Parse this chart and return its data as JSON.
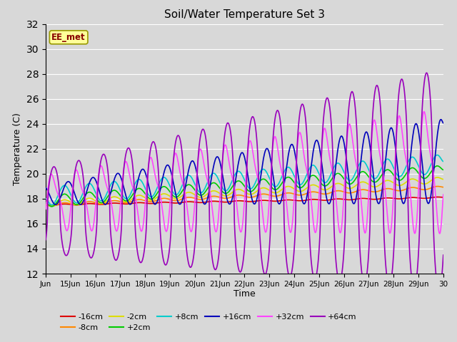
{
  "title": "Soil/Water Temperature Set 3",
  "xlabel": "Time",
  "ylabel": "Temperature (C)",
  "ylim": [
    12,
    32
  ],
  "yticks": [
    12,
    14,
    16,
    18,
    20,
    22,
    24,
    26,
    28,
    30,
    32
  ],
  "annotation": "EE_met",
  "bg_color": "#d8d8d8",
  "series_colors": {
    "-16cm": "#dd0000",
    "-8cm": "#ff8800",
    "-2cm": "#dddd00",
    "+2cm": "#00cc00",
    "+8cm": "#00cccc",
    "+16cm": "#0000bb",
    "+32cm": "#ff44ff",
    "+64cm": "#9900bb"
  },
  "x_tick_labels": [
    "Jun",
    "15Jun",
    "16Jun",
    "17Jun",
    "18Jun",
    "19Jun",
    "20Jun",
    "21Jun",
    "22Jun",
    "23Jun",
    "24Jun",
    "25Jun",
    "26Jun",
    "27Jun",
    "28Jun",
    "29Jun",
    "30"
  ],
  "n_days": 16,
  "pts_per_day": 48
}
